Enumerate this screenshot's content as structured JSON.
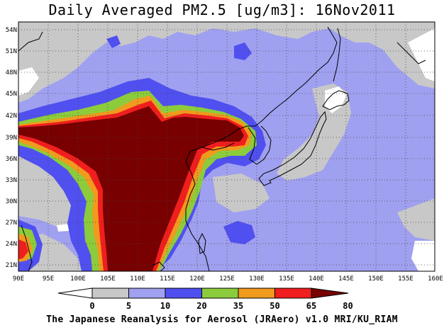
{
  "title": "Daily Averaged PM2.5 [ug/m3]: 16Nov2011",
  "credit": "The Japanese Reanalysis for Aerosol (JRAero) v1.0 MRI/KU_RIAM",
  "map": {
    "lon_labels": [
      "90E",
      "95E",
      "100E",
      "105E",
      "110E",
      "115E",
      "120E",
      "125E",
      "130E",
      "135E",
      "140E",
      "145E",
      "150E",
      "155E",
      "160E"
    ],
    "lat_labels": [
      "54N",
      "51N",
      "48N",
      "45N",
      "42N",
      "39N",
      "36N",
      "33N",
      "30N",
      "27N",
      "24N",
      "21N"
    ]
  },
  "legend": {
    "levels": [
      "0",
      "5",
      "10",
      "20",
      "35",
      "50",
      "65",
      "80"
    ],
    "colors": [
      "#ffffff",
      "#c8c8c8",
      "#a0a0f0",
      "#5050f0",
      "#8ccc3c",
      "#f09a1e",
      "#f01e1e",
      "#780000"
    ]
  },
  "colors": {
    "background": "#ffffff",
    "gray": "#c8c8c8",
    "light_blue": "#a0a0f0",
    "blue": "#5050f0",
    "green": "#8ccc3c",
    "orange": "#f09a1e",
    "red": "#f01e1e",
    "maroon": "#780000"
  }
}
